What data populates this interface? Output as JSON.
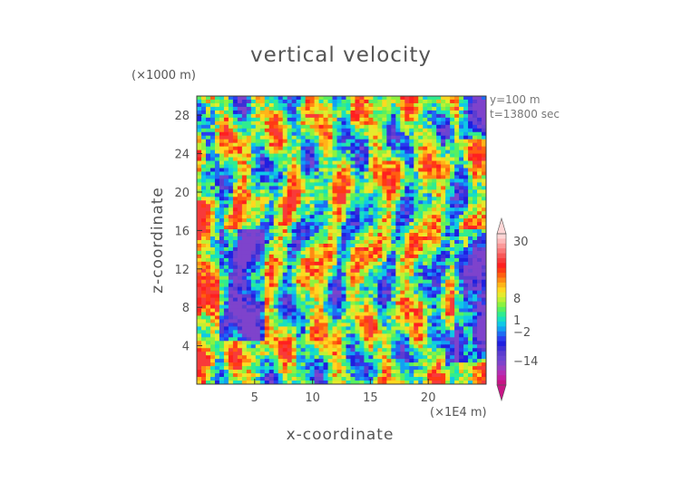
{
  "chart_data": {
    "type": "heatmap",
    "title": "vertical velocity",
    "xlabel": "x-coordinate",
    "ylabel": "z-coordinate",
    "x_unit_label": "(×1E4 m)",
    "y_unit_label": "(×1000 m)",
    "annotations": [
      "y=100 m",
      "t=13800 sec"
    ],
    "xlim": [
      0,
      25
    ],
    "ylim": [
      0,
      30
    ],
    "x_ticks": [
      5,
      10,
      15,
      20
    ],
    "y_ticks": [
      4,
      8,
      12,
      16,
      20,
      24,
      28
    ],
    "colorbar": {
      "tick_labels": [
        "30",
        "8",
        "1",
        "−2",
        "−14"
      ],
      "colors": [
        "#c71585",
        "#c41fa0",
        "#b42fb4",
        "#9a3ec2",
        "#7e43cc",
        "#6a45d2",
        "#5b3cd0",
        "#3d2fd6",
        "#1f1fe0",
        "#2a3cf0",
        "#1e6cf4",
        "#12a0f2",
        "#10c8e6",
        "#18e0c0",
        "#30ec90",
        "#58f060",
        "#8cf240",
        "#bff034",
        "#e6ea2c",
        "#ffd820",
        "#ffb418",
        "#ff8a14",
        "#ff6010",
        "#ff3a14",
        "#ff2020",
        "#f83a3a",
        "#f85858",
        "#fa7878",
        "#fb9898",
        "#fdb8b8",
        "#ffd6d6"
      ]
    },
    "x_ticklabel_values": [
      "5",
      "10",
      "15",
      "20"
    ],
    "y_ticklabel_values": [
      "4",
      "8",
      "12",
      "16",
      "20",
      "24",
      "28"
    ]
  }
}
